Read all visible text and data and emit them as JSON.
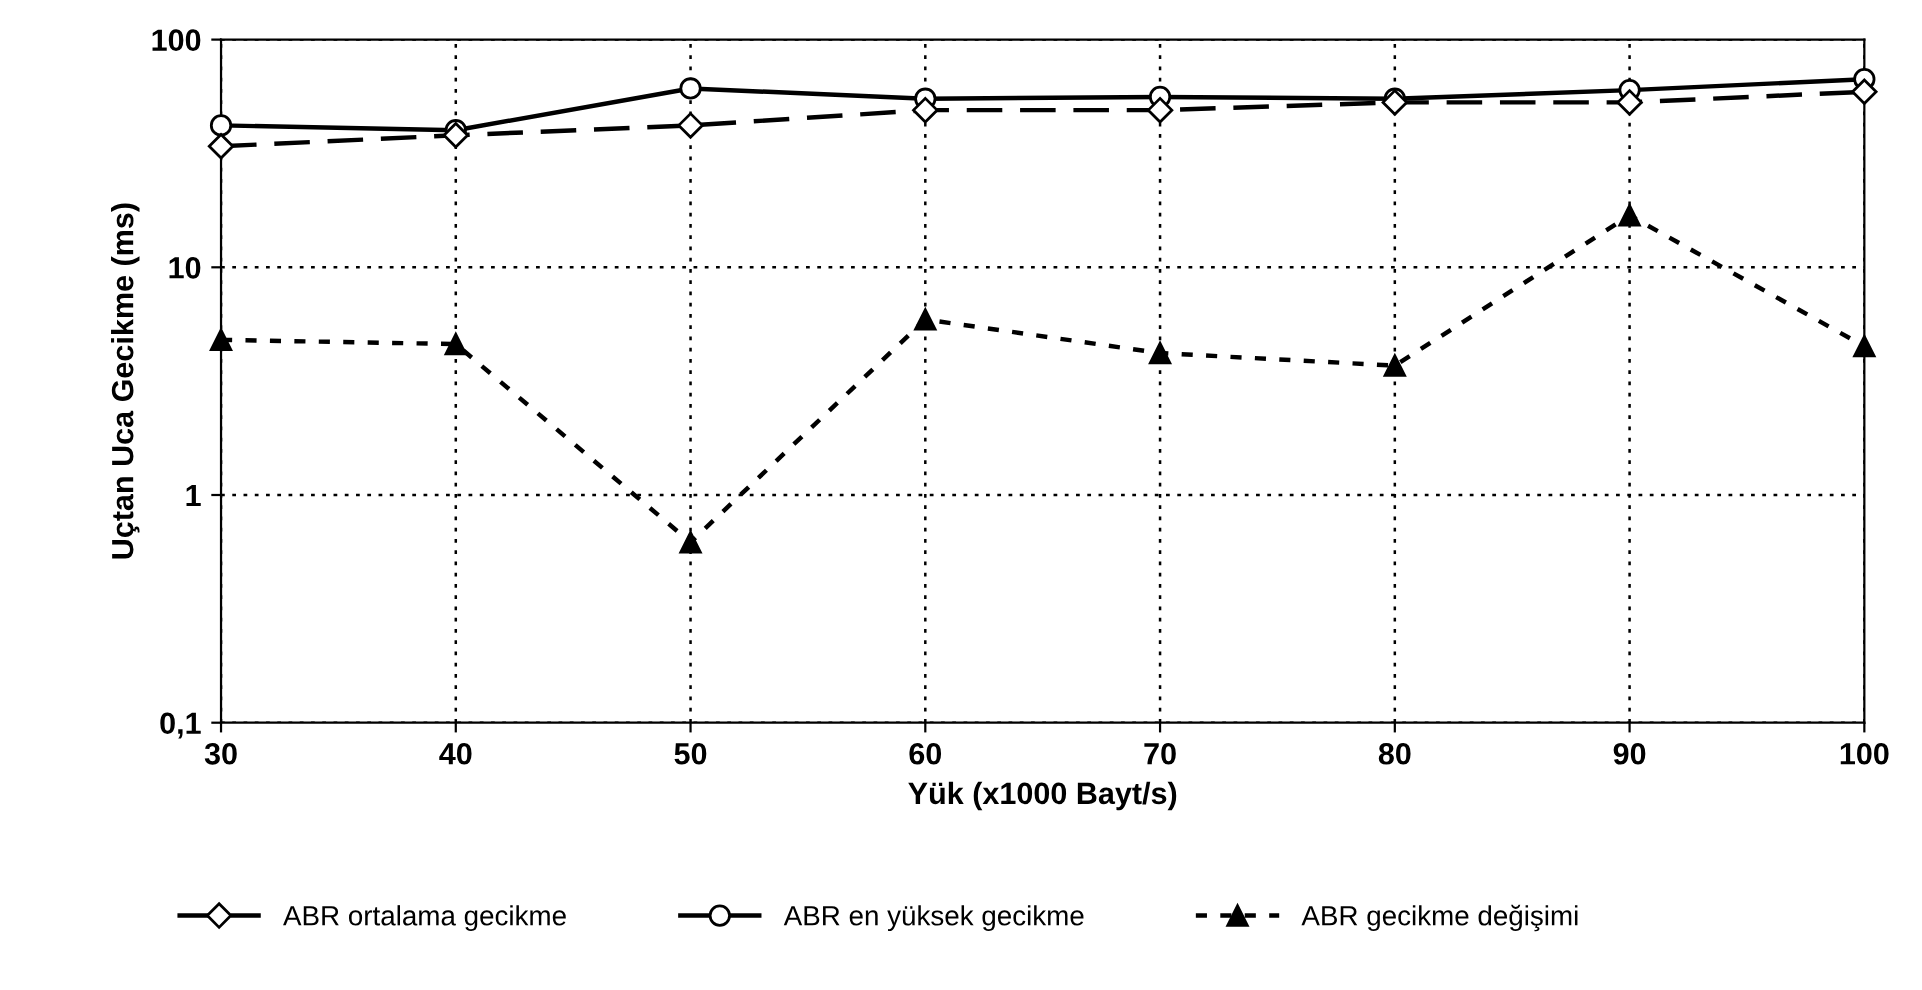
{
  "chart_data": {
    "type": "line",
    "xlabel": "Yük (x1000 Bayt/s)",
    "ylabel": "Uçtan Uca Gecikme (ms)",
    "x": [
      30,
      40,
      50,
      60,
      70,
      80,
      90,
      100
    ],
    "xlim": [
      30,
      100
    ],
    "xticks": [
      30,
      40,
      50,
      60,
      70,
      80,
      90,
      100
    ],
    "log": "y",
    "ylim": [
      0.1,
      100
    ],
    "yticks": [
      {
        "value": 0.1,
        "label": "0,1"
      },
      1,
      10,
      100
    ],
    "grid": true,
    "legend": "bottom",
    "series": [
      {
        "name": "ABR ortalama gecikme",
        "color": "#000000",
        "marker": "diamond",
        "line_style": "dashed",
        "values": [
          34,
          38,
          42,
          49,
          49,
          53,
          53,
          59
        ]
      },
      {
        "name": "ABR en yüksek gecikme",
        "color": "#000000",
        "marker": "circle",
        "line_style": "solid",
        "values": [
          42,
          40,
          61,
          55,
          56,
          55,
          60,
          67
        ]
      },
      {
        "name": "ABR gecikme değişimi",
        "color": "#000000",
        "marker": "triangle",
        "line_style": "dotted",
        "values": [
          4.8,
          4.6,
          0.62,
          5.9,
          4.2,
          3.7,
          16.9,
          4.5
        ]
      }
    ]
  }
}
